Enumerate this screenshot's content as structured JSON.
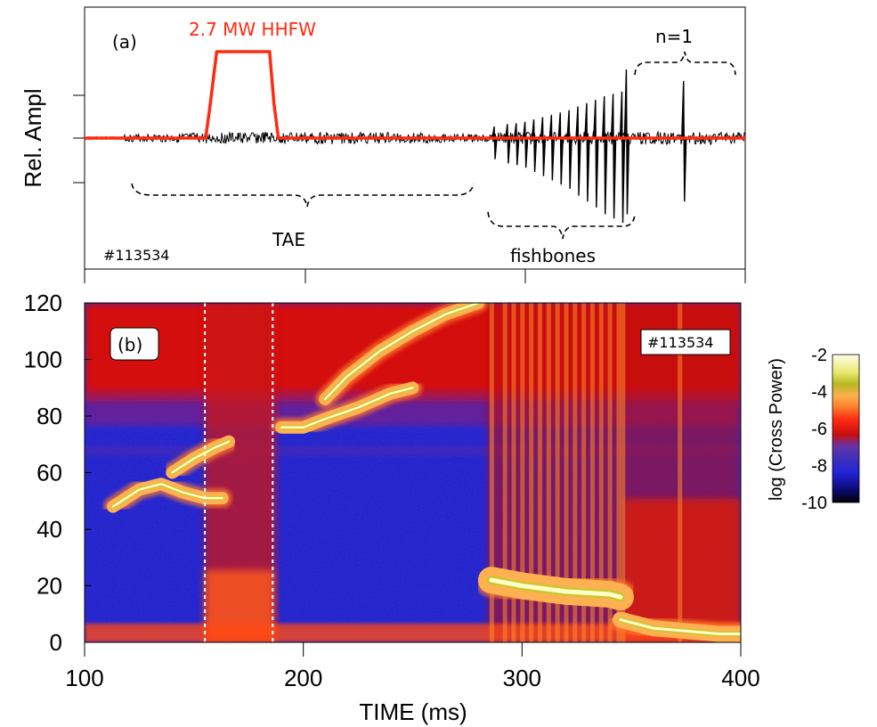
{
  "chart_data": [
    {
      "type": "line",
      "panel_label": "(a)",
      "ylabel": "Rel. Ampl",
      "xlim": [
        100,
        400
      ],
      "shot_label": "#113534",
      "series": [
        {
          "name": "2.7 MW HHFW",
          "color": "#ff2a12",
          "x": [
            100,
            155,
            157,
            160,
            165,
            170,
            175,
            180,
            184,
            186,
            188,
            200,
            300,
            400
          ],
          "y": [
            0,
            0,
            0.38,
            1.0,
            1.0,
            1.0,
            1.0,
            1.0,
            1.0,
            0.4,
            0,
            0,
            0,
            0
          ]
        }
      ],
      "annotations": [
        "TAE",
        "fishbones",
        "n=1"
      ],
      "bursts": {
        "fishbone_times": [
          286,
          292,
          296,
          300,
          304,
          308,
          312,
          316,
          320,
          324,
          328,
          332,
          336,
          340,
          344
        ],
        "fishbone_amplitudes": [
          0.25,
          0.3,
          0.32,
          0.35,
          0.4,
          0.45,
          0.5,
          0.55,
          0.6,
          0.68,
          0.75,
          0.82,
          0.9,
          0.95,
          1.0
        ],
        "n1_spike_times": [
          346,
          372
        ],
        "n1_spike_amplitudes": [
          0.9,
          0.75
        ]
      }
    },
    {
      "type": "heatmap",
      "panel_label": "(b)",
      "xlabel": "TIME (ms)",
      "ylabel": "",
      "xlim": [
        100,
        400
      ],
      "ylim": [
        0,
        120
      ],
      "xticks": [
        100,
        200,
        300,
        400
      ],
      "yticks": [
        0,
        20,
        40,
        60,
        80,
        100,
        120
      ],
      "shot_label": "#113534",
      "colorbar": {
        "label": "log (Cross Power)",
        "ticks": [
          -2,
          -4,
          -6,
          -8,
          -10
        ],
        "range": [
          -10,
          -2
        ],
        "colors": [
          "#000000",
          "#0a0a6e",
          "#2222d8",
          "#6633aa",
          "#c80e0e",
          "#ff2a12",
          "#ff7a2a",
          "#ffb050",
          "#b8b820",
          "#e8e870",
          "#fffde8"
        ]
      },
      "markers": {
        "dashed_lines_x": [
          155,
          186
        ]
      },
      "features": [
        {
          "name": "TAE",
          "x": [
            113,
            125,
            135,
            145,
            155,
            163
          ],
          "y": [
            48,
            54,
            56,
            53,
            51,
            51
          ]
        },
        {
          "name": "TAE-upper",
          "x": [
            140,
            150,
            160,
            166
          ],
          "y": [
            60,
            65,
            69,
            71
          ]
        },
        {
          "name": "chirp-lower",
          "x": [
            190,
            200,
            210,
            225,
            240,
            250
          ],
          "y": [
            76,
            76,
            79,
            83,
            88,
            90
          ]
        },
        {
          "name": "chirp-upper",
          "x": [
            210,
            220,
            235,
            250,
            265,
            280
          ],
          "y": [
            86,
            94,
            103,
            110,
            116,
            120
          ]
        },
        {
          "name": "fishbones",
          "x": [
            286,
            300,
            320,
            340,
            345
          ],
          "y": [
            22,
            20,
            18,
            17,
            16
          ]
        },
        {
          "name": "n=1",
          "x": [
            345,
            360,
            375,
            390,
            400
          ],
          "y": [
            8,
            5,
            4,
            3,
            3
          ]
        }
      ]
    }
  ]
}
